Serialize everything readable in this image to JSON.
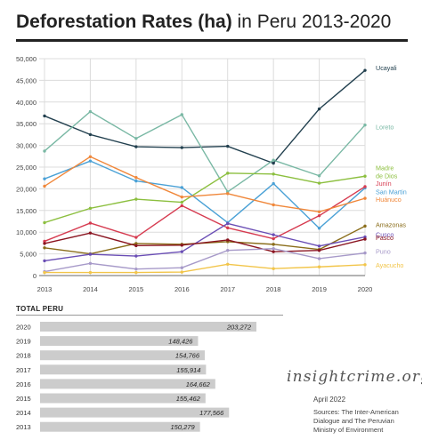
{
  "title": {
    "bold": "Deforestation Rates (ha)",
    "rest": " in Peru 2013-2020"
  },
  "chart_data": [
    {
      "type": "line",
      "x": [
        2013,
        2014,
        2015,
        2016,
        2017,
        2018,
        2019,
        2020
      ],
      "ylim": [
        0,
        50000
      ],
      "yticks": [
        0,
        5000,
        10000,
        15000,
        20000,
        25000,
        30000,
        35000,
        40000,
        45000,
        50000
      ],
      "ytick_labels": [
        "0",
        "5,000",
        "10,000",
        "15,000",
        "20,000",
        "25,000",
        "30,000",
        "35,000",
        "40,000",
        "45,000",
        "50,000"
      ],
      "grid": true,
      "legend": "direct labels at right end of lines",
      "series": [
        {
          "name": "Ucayali",
          "color": "#22404f",
          "values": [
            36800,
            32500,
            29700,
            29500,
            29800,
            25900,
            38400,
            47300
          ]
        },
        {
          "name": "Loreto",
          "color": "#79b8a4",
          "values": [
            28700,
            37800,
            31600,
            37100,
            19300,
            26600,
            23000,
            34700
          ]
        },
        {
          "name": "Madre de Dios",
          "color": "#8cbf3f",
          "values": [
            12200,
            15500,
            17600,
            16900,
            23600,
            23400,
            21300,
            22900
          ]
        },
        {
          "name": "San Martin",
          "color": "#4aa1d6",
          "values": [
            22300,
            26400,
            21800,
            20300,
            12200,
            21200,
            10900,
            20200
          ]
        },
        {
          "name": "Junín",
          "color": "#d63b50",
          "values": [
            7900,
            12100,
            8800,
            16100,
            11000,
            8500,
            13800,
            20500
          ]
        },
        {
          "name": "Huánuco",
          "color": "#f0873a",
          "values": [
            20600,
            27400,
            22600,
            18100,
            18900,
            16300,
            14700,
            17800
          ]
        },
        {
          "name": "Amazonas",
          "color": "#8a6d1a",
          "values": [
            6400,
            5000,
            7400,
            7200,
            7800,
            7200,
            6000,
            11400
          ]
        },
        {
          "name": "Cusco",
          "color": "#6a4eb5",
          "values": [
            3400,
            4900,
            4500,
            5500,
            12000,
            9400,
            6800,
            8900
          ]
        },
        {
          "name": "Pasco",
          "color": "#8a1420",
          "values": [
            7400,
            9800,
            6900,
            7000,
            8200,
            5500,
            5800,
            8400
          ]
        },
        {
          "name": "Puno",
          "color": "#a79ac9",
          "values": [
            900,
            2800,
            1500,
            1800,
            5800,
            6200,
            3900,
            5200
          ]
        },
        {
          "name": "Ayacucho",
          "color": "#f2c54a",
          "values": [
            700,
            700,
            700,
            800,
            2600,
            1600,
            2000,
            2500
          ]
        }
      ]
    },
    {
      "type": "bar",
      "title": "TOTAL PERU",
      "categories": [
        "2020",
        "2019",
        "2018",
        "2017",
        "2016",
        "2015",
        "2014",
        "2013"
      ],
      "values": [
        203272,
        148426,
        154766,
        155914,
        164662,
        155462,
        177566,
        150279
      ],
      "value_labels": [
        "203,272",
        "148,426",
        "154,766",
        "155,914",
        "164,662",
        "155,462",
        "177,566",
        "150,279"
      ],
      "bar_color": "#cccccc"
    }
  ],
  "total_label": "TOTAL PERU",
  "watermark": "insightcrime.org",
  "date": "April 2022",
  "sources": "Sources: The Inter-American Dialogue and The Peruvian Ministry of Environment",
  "colors": {
    "grid": "#dcdcdc",
    "axis": "#9a9a9a",
    "text": "#222222"
  }
}
